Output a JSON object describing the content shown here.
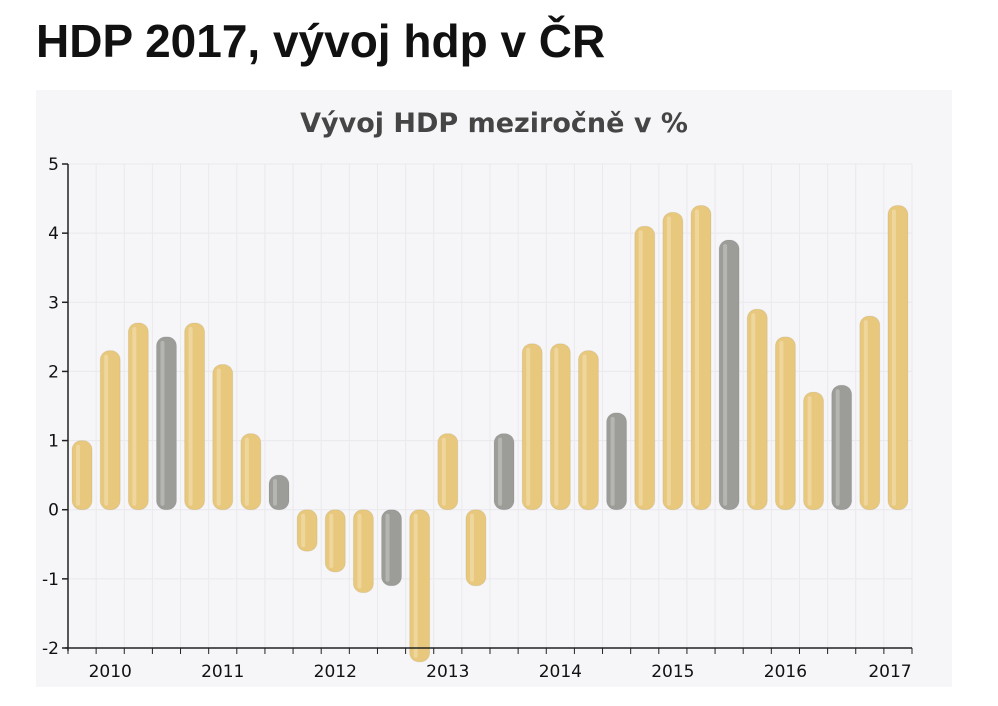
{
  "page": {
    "title": "HDP 2017, vývoj hdp v ČR"
  },
  "colors": {
    "bar_default": "#e8c87c",
    "bar_highlight": "#9c9c98",
    "grid": "#e9e9ee",
    "axis": "#222222"
  },
  "chart_data": {
    "type": "bar",
    "title": "Vývoj HDP meziročně v %",
    "xlabel": "",
    "ylabel": "",
    "ylim": [
      -2,
      5
    ],
    "yticks": [
      -2,
      -1,
      0,
      1,
      2,
      3,
      4,
      5
    ],
    "grid": true,
    "year_labels": [
      "2010",
      "2011",
      "2012",
      "2013",
      "2014",
      "2015",
      "2016",
      "2017"
    ],
    "series": [
      {
        "values": [
          1.0,
          2.3,
          2.7,
          2.5,
          2.7,
          2.1,
          1.1,
          0.5,
          -0.6,
          -0.9,
          -1.2,
          -1.1,
          -2.2,
          1.1,
          -1.1,
          1.1,
          2.4,
          2.4,
          2.3,
          1.4,
          4.1,
          4.3,
          4.4,
          3.9,
          2.9,
          2.5,
          1.7,
          1.8,
          2.8,
          4.4
        ],
        "highlighted": [
          false,
          false,
          false,
          true,
          false,
          false,
          false,
          true,
          false,
          false,
          false,
          true,
          false,
          false,
          false,
          true,
          false,
          false,
          false,
          true,
          false,
          false,
          false,
          true,
          false,
          false,
          false,
          true,
          false,
          false
        ]
      }
    ]
  }
}
